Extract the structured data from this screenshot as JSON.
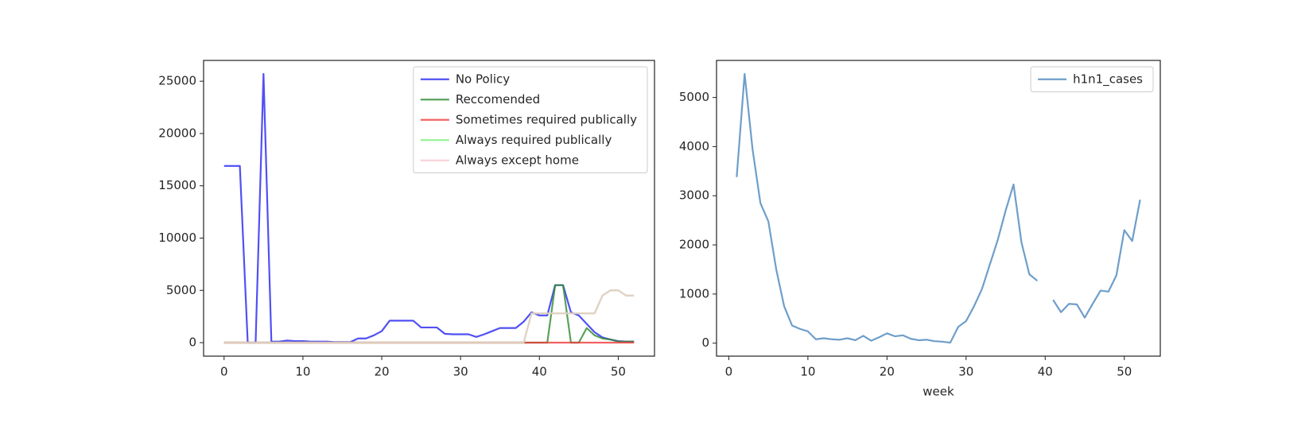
{
  "chart_data": [
    {
      "type": "line",
      "x": [
        0,
        1,
        2,
        3,
        4,
        5,
        6,
        7,
        8,
        9,
        10,
        11,
        12,
        13,
        14,
        15,
        16,
        17,
        18,
        19,
        20,
        21,
        22,
        23,
        24,
        25,
        26,
        27,
        28,
        29,
        30,
        31,
        32,
        33,
        34,
        35,
        36,
        37,
        38,
        39,
        40,
        41,
        42,
        43,
        44,
        45,
        46,
        47,
        48,
        49,
        50,
        51,
        52
      ],
      "series": [
        {
          "name": "No Policy",
          "color": "#2424f2",
          "values": [
            16900,
            16900,
            16900,
            0,
            0,
            25700,
            100,
            100,
            200,
            150,
            150,
            100,
            100,
            100,
            50,
            50,
            50,
            400,
            400,
            700,
            1100,
            2100,
            2100,
            2100,
            2100,
            1450,
            1450,
            1450,
            850,
            800,
            800,
            800,
            550,
            800,
            1100,
            1400,
            1400,
            1400,
            2000,
            2900,
            2600,
            2600,
            5500,
            5500,
            2900,
            2600,
            1800,
            1000,
            500,
            300,
            150,
            100,
            100
          ]
        },
        {
          "name": "Reccomended",
          "color": "#2f8a2f",
          "values": [
            0,
            0,
            0,
            0,
            0,
            0,
            0,
            0,
            0,
            0,
            0,
            0,
            0,
            0,
            0,
            0,
            0,
            0,
            0,
            0,
            0,
            0,
            0,
            0,
            0,
            0,
            0,
            0,
            0,
            0,
            0,
            0,
            0,
            0,
            0,
            0,
            0,
            0,
            0,
            0,
            0,
            0,
            5500,
            5500,
            0,
            0,
            1400,
            700,
            400,
            300,
            100,
            100,
            100
          ]
        },
        {
          "name": "Sometimes required publically",
          "color": "#ee3b3b",
          "values": [
            0,
            0,
            0,
            0,
            0,
            0,
            0,
            0,
            0,
            0,
            0,
            0,
            0,
            0,
            0,
            0,
            0,
            0,
            0,
            0,
            0,
            0,
            0,
            0,
            0,
            0,
            0,
            0,
            0,
            0,
            0,
            0,
            0,
            0,
            0,
            0,
            0,
            0,
            0,
            0,
            0,
            0,
            0,
            0,
            0,
            0,
            0,
            0,
            0,
            0,
            0,
            0,
            0
          ]
        },
        {
          "name": "Always required publically",
          "color": "#7ef07e",
          "values": [
            0,
            0,
            0,
            0,
            0,
            0,
            0,
            0,
            0,
            0,
            0,
            0,
            0,
            0,
            0,
            0,
            0,
            0,
            0,
            0,
            0,
            0,
            0,
            0,
            0,
            0,
            0,
            0,
            0,
            0,
            0,
            0,
            0,
            0,
            0,
            0,
            0,
            0,
            0,
            2800,
            2800,
            2800,
            2800,
            2800,
            2800,
            2800,
            2800,
            2800,
            4500,
            5000,
            5000,
            4500,
            4500
          ]
        },
        {
          "name": "Always except home",
          "color": "#f6c6cf",
          "values": [
            0,
            0,
            0,
            0,
            0,
            0,
            0,
            0,
            0,
            0,
            0,
            0,
            0,
            0,
            0,
            0,
            0,
            0,
            0,
            0,
            0,
            0,
            0,
            0,
            0,
            0,
            0,
            0,
            0,
            0,
            0,
            0,
            0,
            0,
            0,
            0,
            0,
            0,
            0,
            2800,
            2800,
            2800,
            2800,
            2800,
            2800,
            2800,
            2800,
            2800,
            4500,
            5000,
            5000,
            4500,
            4500
          ]
        }
      ],
      "xlim": [
        -2.6,
        54.6
      ],
      "xticks": [
        0,
        10,
        20,
        30,
        40,
        50
      ],
      "ylim": [
        -1290,
        26990
      ],
      "yticks": [
        0,
        5000,
        10000,
        15000,
        20000,
        25000
      ],
      "legend": "upper right",
      "grid": false
    },
    {
      "type": "line",
      "x_label": "week",
      "x": [
        1,
        2,
        3,
        4,
        5,
        6,
        7,
        8,
        9,
        10,
        11,
        12,
        13,
        14,
        15,
        16,
        17,
        18,
        19,
        20,
        21,
        22,
        23,
        24,
        25,
        26,
        27,
        28,
        29,
        30,
        31,
        32,
        33,
        34,
        35,
        36,
        37,
        38,
        39,
        40,
        41,
        42,
        43,
        44,
        45,
        46,
        47,
        48,
        49,
        50,
        51,
        52
      ],
      "series": [
        {
          "name": "h1n1_cases",
          "color": "#4a86bd",
          "values": [
            3380,
            5480,
            3950,
            2850,
            2480,
            1500,
            750,
            360,
            290,
            240,
            80,
            100,
            80,
            70,
            100,
            60,
            150,
            50,
            120,
            200,
            140,
            160,
            90,
            60,
            70,
            40,
            30,
            10,
            330,
            450,
            750,
            1100,
            1600,
            2100,
            2700,
            3230,
            2050,
            1400,
            1270,
            null,
            880,
            630,
            800,
            790,
            520,
            800,
            1070,
            1050,
            1380,
            2300,
            2080,
            2920
          ]
        }
      ],
      "xlim": [
        -1.55,
        54.55
      ],
      "xticks": [
        0,
        10,
        20,
        30,
        40,
        50
      ],
      "ylim": [
        -264,
        5754
      ],
      "yticks": [
        0,
        1000,
        2000,
        3000,
        4000,
        5000
      ],
      "legend": "upper right",
      "grid": false
    }
  ]
}
